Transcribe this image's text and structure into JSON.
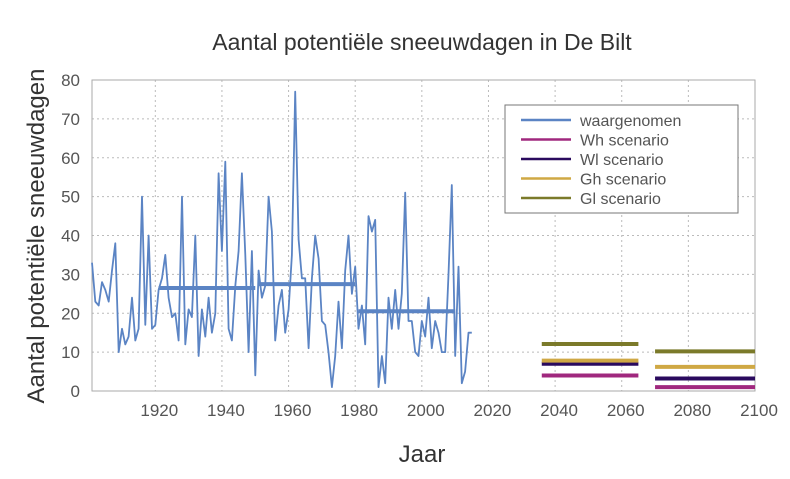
{
  "chart_data": {
    "type": "line",
    "title": "Aantal potentiële sneeuwdagen in De Bilt",
    "xlabel": "Jaar",
    "ylabel": "Aantal potentiële sneeuwdagen",
    "xlim": [
      1901,
      2100
    ],
    "ylim": [
      0,
      80
    ],
    "xticks": [
      1920,
      1940,
      1960,
      1980,
      2000,
      2020,
      2040,
      2060,
      2080,
      2100
    ],
    "yticks": [
      0,
      10,
      20,
      30,
      40,
      50,
      60,
      70,
      80
    ],
    "grid": true,
    "legend_position": "top-right",
    "series": [
      {
        "name": "waargenomen",
        "color": "#5b84c4",
        "x": [
          1901,
          1902,
          1903,
          1904,
          1905,
          1906,
          1907,
          1908,
          1909,
          1910,
          1911,
          1912,
          1913,
          1914,
          1915,
          1916,
          1917,
          1918,
          1919,
          1920,
          1921,
          1922,
          1923,
          1924,
          1925,
          1926,
          1927,
          1928,
          1929,
          1930,
          1931,
          1932,
          1933,
          1934,
          1935,
          1936,
          1937,
          1938,
          1939,
          1940,
          1941,
          1942,
          1943,
          1944,
          1945,
          1946,
          1947,
          1948,
          1949,
          1950,
          1951,
          1952,
          1953,
          1954,
          1955,
          1956,
          1957,
          1958,
          1959,
          1960,
          1961,
          1962,
          1963,
          1964,
          1965,
          1966,
          1967,
          1968,
          1969,
          1970,
          1971,
          1972,
          1973,
          1974,
          1975,
          1976,
          1977,
          1978,
          1979,
          1980,
          1981,
          1982,
          1983,
          1984,
          1985,
          1986,
          1987,
          1988,
          1989,
          1990,
          1991,
          1992,
          1993,
          1994,
          1995,
          1996,
          1997,
          1998,
          1999,
          2000,
          2001,
          2002,
          2003,
          2004,
          2005,
          2006,
          2007,
          2008,
          2009,
          2010,
          2011,
          2012,
          2013,
          2014,
          2015
        ],
        "values": [
          33,
          23,
          22,
          28,
          26,
          23,
          31,
          38,
          10,
          16,
          12,
          14,
          24,
          13,
          16,
          50,
          17,
          40,
          16,
          17,
          26,
          29,
          35,
          24,
          19,
          20,
          13,
          50,
          12,
          21,
          19,
          40,
          9,
          21,
          14,
          24,
          15,
          20,
          56,
          36,
          59,
          16,
          13,
          27,
          36,
          56,
          35,
          10,
          36,
          4,
          31,
          24,
          27,
          50,
          41,
          13,
          22,
          26,
          15,
          21,
          35,
          77,
          39,
          29,
          29,
          11,
          29,
          40,
          34,
          18,
          17,
          10,
          1,
          9,
          23,
          11,
          31,
          40,
          25,
          32,
          16,
          22,
          12,
          45,
          41,
          44,
          1,
          9,
          2,
          24,
          16,
          26,
          16,
          25,
          51,
          18,
          18,
          10,
          9,
          18,
          14,
          24,
          11,
          18,
          15,
          10,
          10,
          30,
          53,
          9,
          32,
          2,
          5,
          15,
          15
        ],
        "period_means": [
          {
            "from": 1921,
            "to": 1950,
            "value": 26.5
          },
          {
            "from": 1951,
            "to": 1980,
            "value": 27.5
          },
          {
            "from": 1981,
            "to": 2010,
            "value": 20.5
          }
        ]
      },
      {
        "name": "Wh scenario",
        "color": "#a0287e",
        "segments": [
          {
            "from": 2036,
            "to": 2065,
            "value": 4
          },
          {
            "from": 2070,
            "to": 2100,
            "value": 1
          }
        ]
      },
      {
        "name": "Wl scenario",
        "color": "#2a0a5e",
        "segments": [
          {
            "from": 2036,
            "to": 2065,
            "value": 7
          },
          {
            "from": 2070,
            "to": 2100,
            "value": 3.2
          }
        ]
      },
      {
        "name": "Gh scenario",
        "color": "#cfa844",
        "segments": [
          {
            "from": 2036,
            "to": 2065,
            "value": 7.8
          },
          {
            "from": 2070,
            "to": 2100,
            "value": 6.2
          }
        ]
      },
      {
        "name": "Gl scenario",
        "color": "#7b7a2a",
        "segments": [
          {
            "from": 2036,
            "to": 2065,
            "value": 12.1
          },
          {
            "from": 2070,
            "to": 2100,
            "value": 10.2
          }
        ]
      }
    ]
  }
}
